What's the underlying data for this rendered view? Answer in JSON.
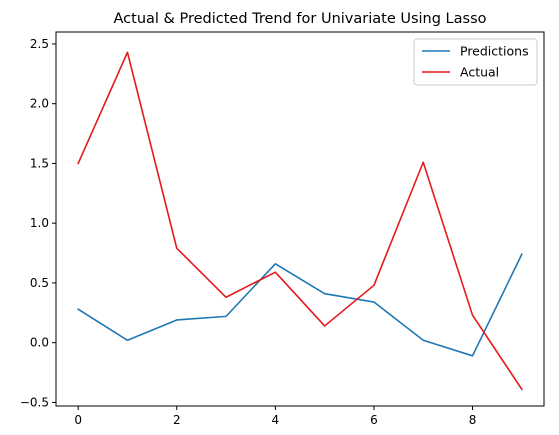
{
  "chart_data": {
    "type": "line",
    "title": "Actual & Predicted Trend for Univariate Using Lasso",
    "xlabel": "",
    "ylabel": "",
    "x": [
      0,
      1,
      2,
      3,
      4,
      5,
      6,
      7,
      8,
      9
    ],
    "xlim": [
      -0.45,
      9.45
    ],
    "ylim": [
      -0.53,
      2.6
    ],
    "xticks": [
      0,
      2,
      4,
      6,
      8
    ],
    "yticks": [
      -0.5,
      0.0,
      0.5,
      1.0,
      1.5,
      2.0,
      2.5
    ],
    "xtick_labels": [
      "0",
      "2",
      "4",
      "6",
      "8"
    ],
    "ytick_labels": [
      "−0.5",
      "0.0",
      "0.5",
      "1.0",
      "1.5",
      "2.0",
      "2.5"
    ],
    "grid": false,
    "legend_position": "top-right",
    "series": [
      {
        "name": "Predictions",
        "color": "#1f77b4",
        "values": [
          0.28,
          0.02,
          0.19,
          0.22,
          0.66,
          0.41,
          0.34,
          0.02,
          -0.11,
          0.74
        ]
      },
      {
        "name": "Actual",
        "color": "#e41a1c",
        "values": [
          1.5,
          2.43,
          0.79,
          0.38,
          0.59,
          0.14,
          0.48,
          1.51,
          0.23,
          -0.39
        ]
      }
    ]
  }
}
